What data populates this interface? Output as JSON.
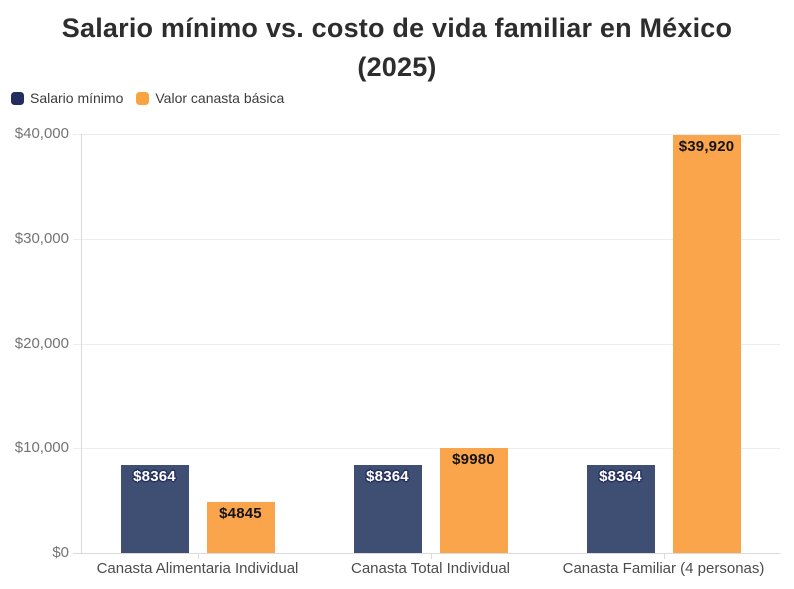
{
  "title": {
    "line1": "Salario mínimo vs. costo de vida familiar en México",
    "line2": "(2025)"
  },
  "legend": {
    "items": [
      {
        "label": "Salario mínimo",
        "color": "#232d5f"
      },
      {
        "label": "Valor canasta básica",
        "color": "#f9a43e"
      }
    ]
  },
  "colors": {
    "background": "#ffffff",
    "title_text": "#2d2d2d",
    "grid_line": "#ededed",
    "axis_line": "#dadada",
    "y_tick_text": "#747474",
    "x_tick_text": "#4c4c4c",
    "salario_bar": "#3f4e73",
    "canasta_bar": "#faa44c",
    "navy_label_text": "#ffffff",
    "navy_label_outline": "#27315f",
    "orange_label_text": "#141414"
  },
  "chart_data": {
    "type": "bar",
    "title": "Salario mínimo vs. costo de vida familiar en México (2025)",
    "categories": [
      "Canasta Alimentaria Individual",
      "Canasta Total Individual",
      "Canasta Familiar (4 personas)"
    ],
    "series": [
      {
        "name": "Salario mínimo",
        "color": "#3f4e73",
        "values": [
          8364,
          8364,
          8364
        ],
        "value_labels": [
          "$8364",
          "$8364",
          "$8364"
        ],
        "label_style": "light"
      },
      {
        "name": "Valor canasta básica",
        "color": "#faa44c",
        "values": [
          4845,
          9980,
          39920
        ],
        "value_labels": [
          "$4845",
          "$9980",
          "$39,920"
        ],
        "label_style": "dark"
      }
    ],
    "xlabel": "",
    "ylabel": "",
    "ylim": [
      0,
      40000
    ],
    "y_ticks": [
      {
        "value": 0,
        "label": "$0"
      },
      {
        "value": 10000,
        "label": "$10,000"
      },
      {
        "value": 20000,
        "label": "$20,000"
      },
      {
        "value": 30000,
        "label": "$30,000"
      },
      {
        "value": 40000,
        "label": "$40,000"
      }
    ],
    "grid": true,
    "legend_position": "top-left"
  }
}
